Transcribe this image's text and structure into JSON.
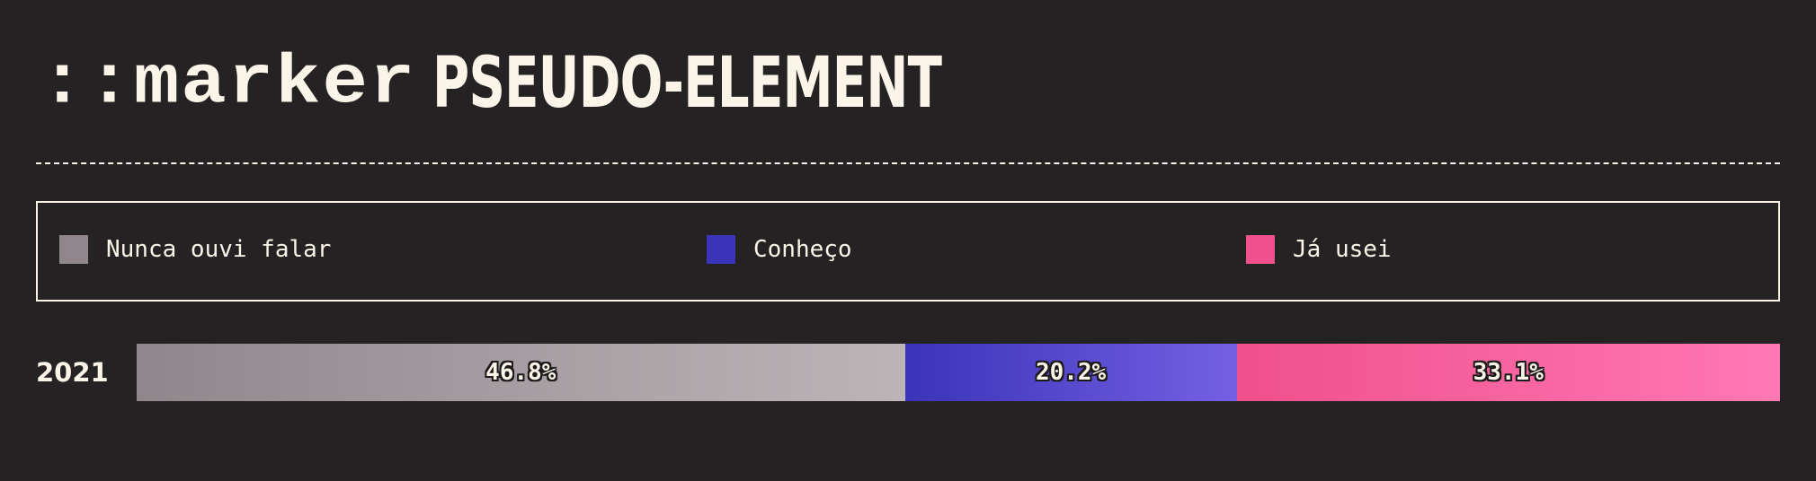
{
  "header": {
    "title_code": "::marker",
    "title_text": "PSEUDO-ELEMENT"
  },
  "legend": {
    "items": [
      {
        "label": "Nunca ouvi falar",
        "color": "#8f878c"
      },
      {
        "label": "Conheço",
        "color": "#3b33b9"
      },
      {
        "label": "Já usei",
        "color": "#f0508c"
      }
    ]
  },
  "chart_data": {
    "type": "bar",
    "orientation": "horizontal-stacked",
    "title": "",
    "categories": [
      "2021"
    ],
    "series": [
      {
        "name": "Nunca ouvi falar",
        "values": [
          46.8
        ],
        "label": "46.8%",
        "color_start": "#8f878c",
        "color_end": "#bcb4b7"
      },
      {
        "name": "Conheço",
        "values": [
          20.2
        ],
        "label": "20.2%",
        "color_start": "#3b33b9",
        "color_end": "#7560e3"
      },
      {
        "name": "Já usei",
        "values": [
          33.1
        ],
        "label": "33.1%",
        "color_start": "#f0508c",
        "color_end": "#ff78b4"
      }
    ],
    "unit": "%"
  }
}
